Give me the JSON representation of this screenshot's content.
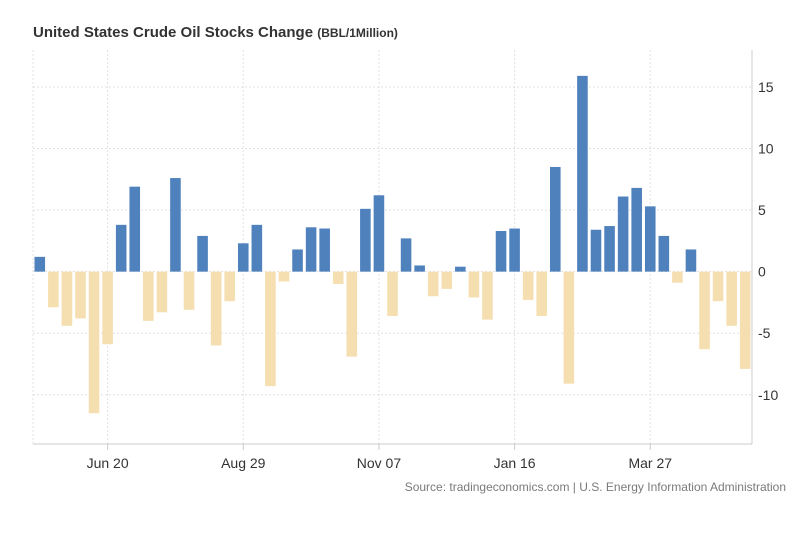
{
  "header": {
    "title": "United States Crude Oil Stocks Change",
    "unit": "(BBL/1Million)"
  },
  "footer": {
    "source": "Source: tradingeconomics.com | U.S. Energy Information Administration"
  },
  "colors": {
    "positive": "#4f81bd",
    "negative": "#f5deb0",
    "grid": "#e0e0e0",
    "axis": "#cccccc"
  },
  "chart_data": {
    "type": "bar",
    "title": "United States Crude Oil Stocks Change",
    "subtitle": "(BBL/1Million)",
    "x_tick_labels": [
      "Jun 20",
      "Aug 29",
      "Nov 07",
      "Jan 16",
      "Mar 27"
    ],
    "x_tick_bar_index": [
      5,
      15,
      25,
      35,
      45
    ],
    "y_ticks": [
      15,
      10,
      5,
      0,
      -5,
      -10
    ],
    "ylim": [
      -14,
      18
    ],
    "grid": true,
    "values": [
      1.2,
      -2.9,
      -4.4,
      -3.8,
      -11.5,
      -5.9,
      3.8,
      6.9,
      -4.0,
      -3.3,
      7.6,
      -3.1,
      2.9,
      -6.0,
      -2.4,
      2.3,
      3.8,
      -9.3,
      -0.8,
      1.8,
      3.6,
      3.5,
      -1.0,
      -6.9,
      5.1,
      6.2,
      -3.6,
      2.7,
      0.5,
      -2.0,
      -1.4,
      0.4,
      -2.1,
      -3.9,
      3.3,
      3.5,
      -2.3,
      -3.6,
      8.5,
      -9.1,
      15.9,
      3.4,
      3.7,
      6.1,
      6.8,
      5.3,
      2.9,
      -0.9,
      1.8,
      -6.3,
      -2.4,
      -4.4,
      -7.9
    ]
  }
}
